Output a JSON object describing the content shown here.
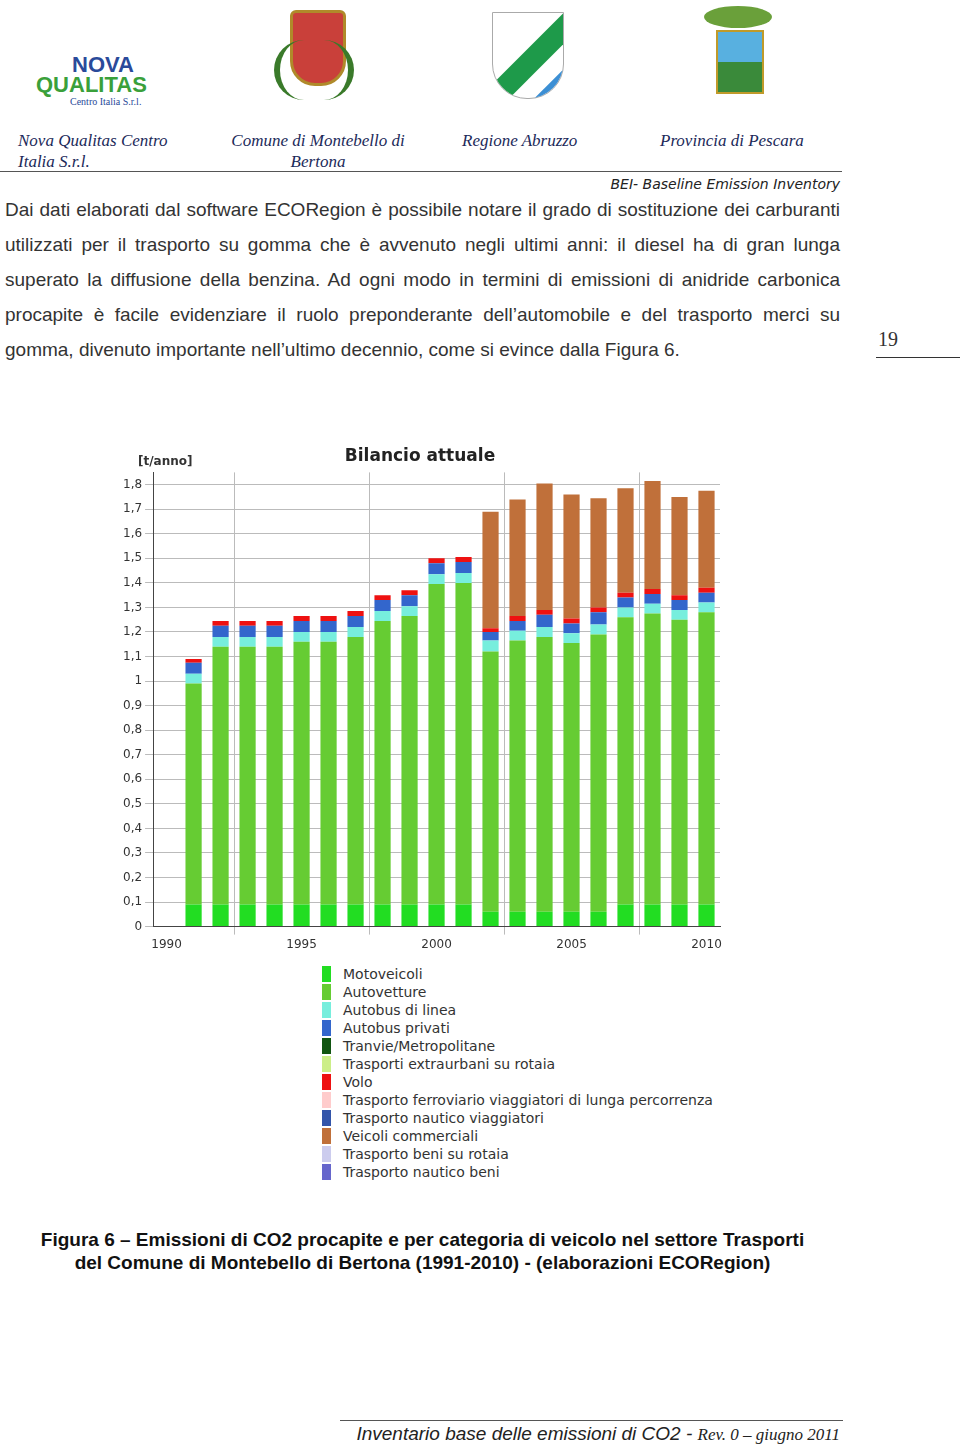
{
  "header": {
    "logo": [
      "NOVA",
      "QUALITAS",
      "Centro Italia S.r.l."
    ],
    "entities": [
      "Nova Qualitas Centro Italia S.r.l.",
      "Comune di Montebello di Bertona",
      "Regione Abruzzo",
      "Provincia di Pescara"
    ],
    "doc_title": "BEI- Baseline Emission Inventory"
  },
  "page_number": "19",
  "paragraph": "Dai dati elaborati dal software ECORegion è possibile notare il grado di sostituzione dei carburanti utilizzati per il trasporto su gomma che è avvenuto negli ultimi anni: il diesel ha di gran lunga superato la diffusione della benzina. Ad ogni modo in termini di emissioni di anidride carbonica procapite è facile evidenziare il ruolo preponderante dell’automobile e del trasporto merci su gomma, divenuto importante nell’ultimo decennio, come si evince dalla Figura 6.",
  "chart_data": {
    "type": "bar",
    "title": "Bilancio attuale",
    "y_label": "[t/anno]",
    "stacked": true,
    "grid": true,
    "x": [
      1991,
      1992,
      1993,
      1994,
      1995,
      1996,
      1997,
      1998,
      1999,
      2000,
      2001,
      2002,
      2003,
      2004,
      2005,
      2006,
      2007,
      2008,
      2009,
      2010
    ],
    "xlim": [
      1989.5,
      2010.5
    ],
    "xticks": [
      1990,
      1995,
      2000,
      2005,
      2010
    ],
    "ylim": [
      0,
      1.85
    ],
    "yticks": [
      0,
      {
        "value": 0.1,
        "label": "0,1"
      },
      {
        "value": 0.2,
        "label": "0,2"
      },
      {
        "value": 0.3,
        "label": "0,3"
      },
      {
        "value": 0.4,
        "label": "0,4"
      },
      {
        "value": 0.5,
        "label": "0,5"
      },
      {
        "value": 0.6,
        "label": "0,6"
      },
      {
        "value": 0.7,
        "label": "0,7"
      },
      {
        "value": 0.8,
        "label": "0,8"
      },
      {
        "value": 0.9,
        "label": "0,9"
      },
      1,
      {
        "value": 1.1,
        "label": "1,1"
      },
      {
        "value": 1.2,
        "label": "1,2"
      },
      {
        "value": 1.3,
        "label": "1,3"
      },
      {
        "value": 1.4,
        "label": "1,4"
      },
      {
        "value": 1.5,
        "label": "1,5"
      },
      {
        "value": 1.6,
        "label": "1,6"
      },
      {
        "value": 1.7,
        "label": "1,7"
      },
      {
        "value": 1.8,
        "label": "1,8"
      }
    ],
    "series": [
      {
        "name": "Motoveicoli",
        "color": "#22dd22",
        "values": [
          0.09,
          0.09,
          0.09,
          0.09,
          0.09,
          0.09,
          0.09,
          0.09,
          0.09,
          0.09,
          0.09,
          0.06,
          0.06,
          0.06,
          0.06,
          0.06,
          0.09,
          0.09,
          0.09,
          0.09
        ]
      },
      {
        "name": "Autovetture",
        "color": "#66cc33",
        "values": [
          0.9,
          1.05,
          1.05,
          1.05,
          1.07,
          1.07,
          1.09,
          1.155,
          1.175,
          1.305,
          1.31,
          1.06,
          1.105,
          1.12,
          1.095,
          1.13,
          1.17,
          1.185,
          1.16,
          1.19
        ]
      },
      {
        "name": "Autobus di linea",
        "color": "#77eedd",
        "values": [
          0.04,
          0.04,
          0.04,
          0.04,
          0.04,
          0.04,
          0.04,
          0.04,
          0.04,
          0.04,
          0.04,
          0.045,
          0.04,
          0.04,
          0.04,
          0.04,
          0.04,
          0.04,
          0.04,
          0.04
        ]
      },
      {
        "name": "Autobus privati",
        "color": "#3366cc",
        "values": [
          0.045,
          0.045,
          0.045,
          0.045,
          0.045,
          0.045,
          0.045,
          0.045,
          0.045,
          0.045,
          0.045,
          0.035,
          0.04,
          0.05,
          0.04,
          0.05,
          0.04,
          0.04,
          0.04,
          0.04
        ]
      },
      {
        "name": "Tranvie/Metropolitane",
        "color": "#115511",
        "values": [
          0,
          0,
          0,
          0,
          0,
          0,
          0,
          0,
          0,
          0,
          0,
          0,
          0,
          0,
          0,
          0,
          0,
          0,
          0,
          0
        ]
      },
      {
        "name": "Trasporti extraurbani su rotaia",
        "color": "#ccee88",
        "values": [
          0,
          0,
          0,
          0,
          0,
          0,
          0,
          0,
          0,
          0,
          0,
          0,
          0,
          0,
          0,
          0,
          0,
          0,
          0,
          0
        ]
      },
      {
        "name": "Volo",
        "color": "#ee1111",
        "values": [
          0.015,
          0.02,
          0.02,
          0.02,
          0.02,
          0.02,
          0.02,
          0.02,
          0.02,
          0.02,
          0.02,
          0.015,
          0.02,
          0.02,
          0.02,
          0.02,
          0.02,
          0.02,
          0.02,
          0.02
        ]
      },
      {
        "name": "Trasporto ferroviario viaggiatori di lunga percorrenza",
        "color": "#ffcccc",
        "values": [
          0,
          0,
          0,
          0,
          0,
          0,
          0,
          0,
          0,
          0,
          0,
          0,
          0,
          0,
          0,
          0,
          0,
          0,
          0,
          0
        ]
      },
      {
        "name": "Trasporto nautico viaggiatori",
        "color": "#3355aa",
        "values": [
          0,
          0,
          0,
          0,
          0,
          0,
          0,
          0,
          0,
          0,
          0,
          0,
          0,
          0,
          0,
          0,
          0,
          0,
          0,
          0
        ]
      },
      {
        "name": "Veicoli commerciali",
        "color": "#c0703a",
        "values": [
          0,
          0,
          0,
          0,
          0,
          0,
          0,
          0,
          0,
          0,
          0,
          0.475,
          0.475,
          0.515,
          0.505,
          0.445,
          0.425,
          0.44,
          0.4,
          0.395
        ]
      },
      {
        "name": "Trasporto beni su rotaia",
        "color": "#ccccee",
        "values": [
          0,
          0,
          0,
          0,
          0,
          0,
          0,
          0,
          0,
          0,
          0,
          0,
          0,
          0,
          0,
          0,
          0,
          0,
          0,
          0
        ]
      },
      {
        "name": "Trasporto nautico beni",
        "color": "#6666cc",
        "values": [
          0,
          0,
          0,
          0,
          0,
          0,
          0,
          0,
          0,
          0,
          0,
          0,
          0,
          0,
          0,
          0,
          0,
          0,
          0,
          0
        ]
      }
    ]
  },
  "caption": [
    "Figura 6 – Emissioni di CO2 procapite e per categoria di veicolo nel settore Trasporti",
    "del Comune di Montebello di Bertona (1991-2010) - (elaborazioni ECORegion)"
  ],
  "footer": [
    "Inventario base delle emissioni di CO2 - ",
    "Rev. 0 – giugno 2011"
  ]
}
